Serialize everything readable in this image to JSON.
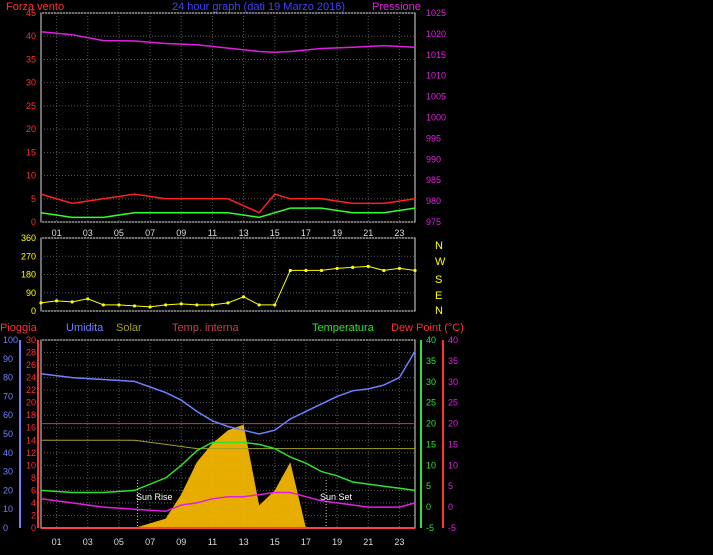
{
  "header": {
    "wind_label": "Forza vento",
    "title": "24 hour graph (dati 19 Marzo 2016)",
    "pressure_label": "Pressione"
  },
  "bottom_header": {
    "rain": "Pioggia",
    "humidity": "Umidita",
    "solar": "Solar",
    "temp_in": "Temp. interna",
    "temperature": "Temperatura",
    "dewpoint": "Dew Point (°C)"
  },
  "compass": [
    "N",
    "W",
    "S",
    "E",
    "N"
  ],
  "annotations": {
    "sunrise": "Sun Rise",
    "sunset": "Sun Set"
  },
  "colors": {
    "wind": "#ff2020",
    "gust": "#30ff30",
    "pressure": "#e020e0",
    "direction": "#ffff00",
    "humidity": "#7080ff",
    "solar": "#ffc000",
    "temp_in": "#c04050",
    "temperature": "#30e030",
    "dewpoint": "#e020e0",
    "rain": "#ff4040",
    "solar_ref": "#a0a020"
  },
  "chart_data": [
    {
      "type": "line",
      "title": "24 hour graph (dati 19 Marzo 2016)",
      "xlabel": "",
      "ylabel": "Forza vento",
      "x_ticks": [
        "01",
        "03",
        "05",
        "07",
        "09",
        "11",
        "13",
        "15",
        "17",
        "19",
        "21",
        "23"
      ],
      "x": [
        0,
        2,
        4,
        6,
        8,
        10,
        12,
        14,
        15,
        16,
        18,
        20,
        22,
        24
      ],
      "left_axis": {
        "label": "Forza vento",
        "ylim": [
          0,
          45
        ],
        "ticks": [
          0,
          5,
          10,
          15,
          20,
          25,
          30,
          35,
          40,
          45
        ]
      },
      "right_axis": {
        "label": "Pressione",
        "ylim": [
          975,
          1025
        ],
        "ticks": [
          975,
          980,
          985,
          990,
          995,
          1000,
          1005,
          1010,
          1015,
          1020,
          1025
        ]
      },
      "series": [
        {
          "name": "Pressione",
          "axis": "right",
          "values": [
            1020.5,
            1019.8,
            1018.4,
            1018.3,
            1017.7,
            1017.4,
            1016.6,
            1015.8,
            1015.6,
            1015.8,
            1016.5,
            1016.8,
            1017.2,
            1016.8
          ]
        },
        {
          "axis": "left",
          "values": [
            6,
            4,
            5,
            6,
            5,
            5,
            5,
            2,
            6,
            5,
            5,
            4,
            4,
            5
          ]
        },
        {
          "axis": "left",
          "values": [
            2,
            1,
            1,
            2,
            2,
            2,
            2,
            1,
            2,
            3,
            3,
            2,
            2,
            3
          ]
        }
      ],
      "grid": true
    },
    {
      "type": "scatter",
      "ylabel": "",
      "ylim": [
        0,
        360
      ],
      "y_ticks": [
        0,
        90,
        180,
        270,
        360
      ],
      "x": [
        0,
        1,
        2,
        3,
        4,
        5,
        6,
        7,
        8,
        9,
        10,
        11,
        12,
        13,
        14,
        15,
        16,
        17,
        18,
        19,
        20,
        21,
        22,
        23,
        24
      ],
      "values": [
        40,
        50,
        45,
        60,
        30,
        30,
        25,
        20,
        30,
        35,
        30,
        30,
        40,
        70,
        30,
        30,
        200,
        200,
        200,
        210,
        215,
        220,
        200,
        210,
        200
      ],
      "grid": true
    },
    {
      "type": "line",
      "x_ticks": [
        "01",
        "03",
        "05",
        "07",
        "09",
        "11",
        "13",
        "15",
        "17",
        "19",
        "21",
        "23"
      ],
      "x": [
        0,
        2,
        4,
        6,
        8,
        9,
        10,
        11,
        12,
        13,
        14,
        15,
        16,
        17,
        18,
        19,
        20,
        21,
        22,
        23,
        24
      ],
      "axes": {
        "rain_mm": {
          "label": "Pioggia",
          "ylim": [
            0,
            30
          ],
          "ticks": [
            0,
            2,
            4,
            6,
            8,
            10,
            12,
            14,
            16,
            18,
            20,
            22,
            24,
            26,
            28,
            30
          ]
        },
        "humidity_pct": {
          "label": "Umidita",
          "ylim": [
            0,
            100
          ],
          "ticks": [
            0,
            10,
            20,
            30,
            40,
            50,
            60,
            70,
            80,
            90,
            100
          ]
        },
        "temp_c": {
          "label": "Temperatura",
          "ylim": [
            -5,
            40
          ],
          "ticks": [
            -5,
            0,
            5,
            10,
            15,
            20,
            25,
            30,
            35,
            40
          ]
        },
        "dewpoint_c": {
          "label": "Dew Point (°C)",
          "ylim": [
            -5,
            40
          ],
          "ticks": [
            -5,
            0,
            5,
            10,
            15,
            20,
            25,
            30,
            35,
            40
          ]
        }
      },
      "series": [
        {
          "name": "Umidita",
          "axis": "humidity_pct",
          "values": [
            82,
            80,
            79,
            78,
            72,
            68,
            62,
            57,
            54,
            52,
            50,
            52,
            58,
            62,
            66,
            70,
            73,
            74,
            76,
            80,
            94
          ]
        },
        {
          "name": "Temperatura",
          "axis": "temp_c",
          "values": [
            4,
            3.5,
            3.5,
            4,
            7,
            10,
            13.5,
            15.5,
            15.5,
            15.5,
            15,
            14,
            12,
            10.5,
            8.5,
            7.5,
            6,
            5.5,
            5,
            4.5,
            4
          ]
        },
        {
          "name": "Dew Point (°C)",
          "axis": "dewpoint_c",
          "values": [
            2,
            1,
            0,
            -0.5,
            -1,
            0.5,
            1,
            2,
            2.5,
            2.5,
            3,
            3.5,
            3.5,
            2.5,
            1.5,
            1,
            0.5,
            0,
            0,
            0,
            1
          ]
        },
        {
          "name": "Temp. interna",
          "axis": "temp_c",
          "values": [
            20,
            20,
            20,
            20,
            20,
            20,
            20,
            20,
            20,
            20,
            20,
            20,
            20,
            20,
            20,
            20,
            20,
            20,
            20,
            20,
            20
          ]
        },
        {
          "name": "Solar",
          "axis": "temp_c",
          "values": [
            16,
            16,
            16,
            16,
            15,
            14.5,
            14,
            14,
            14,
            14,
            14,
            14,
            14,
            14,
            14,
            14,
            14,
            14,
            14,
            14,
            14
          ]
        },
        {
          "name": "Solar",
          "axis": "humidity_pct",
          "type": "area",
          "values": [
            0,
            0,
            0,
            0,
            5,
            18,
            35,
            45,
            52,
            55,
            12,
            20,
            35,
            0,
            0,
            0,
            0,
            0,
            0,
            0,
            0
          ]
        },
        {
          "name": "Pioggia",
          "axis": "rain_mm",
          "values": [
            0,
            0,
            0,
            0,
            0,
            0,
            0,
            0,
            0,
            0,
            0,
            0,
            0,
            0,
            0,
            0,
            0,
            0,
            0,
            0,
            0
          ]
        }
      ],
      "grid": true
    }
  ]
}
